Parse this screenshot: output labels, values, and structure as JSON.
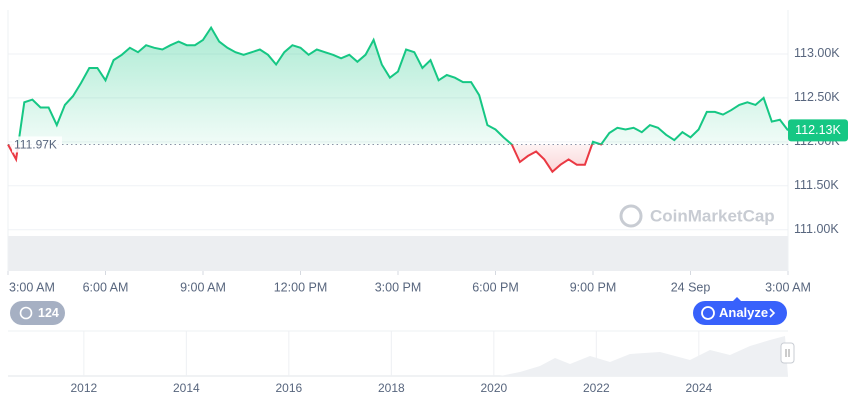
{
  "chart_data": {
    "type": "area",
    "x": [
      0,
      0.25,
      0.5,
      0.75,
      1,
      1.25,
      1.5,
      1.75,
      2,
      2.25,
      2.5,
      2.75,
      3,
      3.25,
      3.5,
      3.75,
      4,
      4.25,
      4.5,
      4.75,
      5,
      5.25,
      5.5,
      5.75,
      6,
      6.25,
      6.5,
      6.75,
      7,
      7.25,
      7.5,
      7.75,
      8,
      8.25,
      8.5,
      8.75,
      9,
      9.25,
      9.5,
      9.75,
      10,
      10.25,
      10.5,
      10.75,
      11,
      11.25,
      11.5,
      11.75,
      12,
      12.25,
      12.5,
      12.75,
      13,
      13.25,
      13.5,
      13.75,
      14,
      14.25,
      14.5,
      14.75,
      15,
      15.25,
      15.5,
      15.75,
      16,
      16.25,
      16.5,
      16.75,
      17,
      17.25,
      17.5,
      17.75,
      18,
      18.25,
      18.5,
      18.75,
      19,
      19.25,
      19.5,
      19.75,
      20,
      20.25,
      20.5,
      20.75,
      21,
      21.25,
      21.5,
      21.75,
      22,
      22.25,
      22.5,
      22.75,
      23,
      23.25,
      23.5,
      23.75,
      24
    ],
    "values": [
      111.97,
      111.8,
      112.45,
      112.48,
      112.39,
      112.39,
      112.19,
      112.42,
      112.52,
      112.67,
      112.84,
      112.84,
      112.7,
      112.93,
      112.99,
      113.07,
      113.02,
      113.1,
      113.07,
      113.05,
      113.1,
      113.14,
      113.1,
      113.1,
      113.16,
      113.3,
      113.14,
      113.07,
      113.02,
      112.99,
      113.02,
      113.05,
      112.99,
      112.88,
      113.02,
      113.1,
      113.07,
      112.99,
      113.05,
      113.02,
      112.99,
      112.95,
      112.99,
      112.91,
      112.99,
      113.16,
      112.88,
      112.73,
      112.8,
      113.05,
      113.02,
      112.84,
      112.93,
      112.7,
      112.76,
      112.73,
      112.68,
      112.68,
      112.53,
      112.19,
      112.14,
      112.05,
      111.97,
      111.77,
      111.84,
      111.89,
      111.8,
      111.66,
      111.74,
      111.8,
      111.74,
      111.74,
      112.0,
      111.97,
      112.1,
      112.16,
      112.14,
      112.16,
      112.11,
      112.19,
      112.16,
      112.08,
      112.02,
      112.11,
      112.05,
      112.14,
      112.34,
      112.34,
      112.31,
      112.36,
      112.42,
      112.45,
      112.42,
      112.5,
      112.23,
      112.25,
      112.13
    ],
    "xlim": [
      0,
      24
    ],
    "xticks": [
      {
        "value": 0,
        "label": "3:00 AM"
      },
      {
        "value": 3,
        "label": "6:00 AM"
      },
      {
        "value": 6,
        "label": "9:00 AM"
      },
      {
        "value": 9,
        "label": "12:00 PM"
      },
      {
        "value": 12,
        "label": "3:00 PM"
      },
      {
        "value": 15,
        "label": "6:00 PM"
      },
      {
        "value": 18,
        "label": "9:00 PM"
      },
      {
        "value": 21,
        "label": "24 Sep"
      },
      {
        "value": 24,
        "label": "3:00 AM"
      }
    ],
    "ylim": [
      110.53,
      113.5
    ],
    "yticks": [
      {
        "value": 111,
        "label": "111.00K"
      },
      {
        "value": 111.5,
        "label": "111.50K"
      },
      {
        "value": 112,
        "label": "112.00K"
      },
      {
        "value": 112.5,
        "label": "112.50K"
      },
      {
        "value": 113,
        "label": "113.00K"
      }
    ],
    "baseline": {
      "value": 111.97,
      "label": "111.97K"
    },
    "last_price": {
      "value": 112.13,
      "label": "112.13K"
    },
    "color_up": "#16c784",
    "color_down": "#ea3943",
    "grid": true,
    "navigator": {
      "xlim": [
        2010.52,
        2025.74
      ],
      "xticks": [
        2012,
        2014,
        2016,
        2018,
        2020,
        2022,
        2024
      ]
    }
  },
  "controls": {
    "history_button": "124",
    "analyze_button": "Analyze",
    "watermark": "CoinMarketCap"
  }
}
